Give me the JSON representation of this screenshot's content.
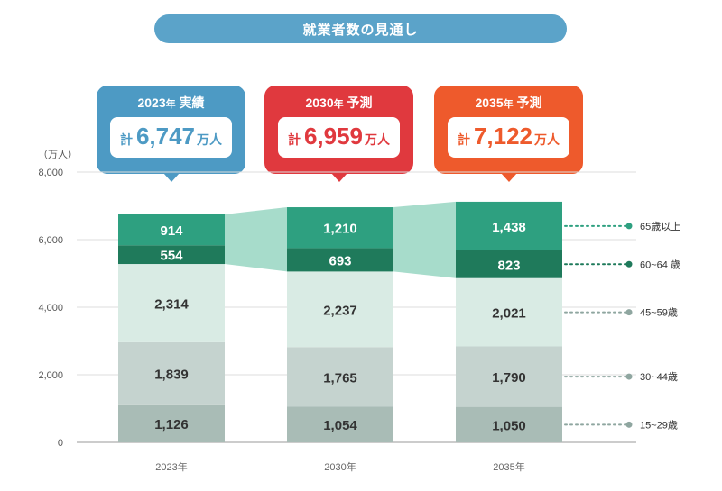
{
  "title": "就業者数の見通し",
  "callouts": [
    {
      "year": "2023",
      "nen": "年",
      "label": "実績",
      "kei": "計",
      "total": "6,747",
      "unit": "万人",
      "color": "#4d9ac4"
    },
    {
      "year": "2030",
      "nen": "年",
      "label": "予測",
      "kei": "計",
      "total": "6,959",
      "unit": "万人",
      "color": "#e0393e"
    },
    {
      "year": "2035",
      "nen": "年",
      "label": "予測",
      "kei": "計",
      "total": "7,122",
      "unit": "万人",
      "color": "#ee5a2c"
    }
  ],
  "chart_data": {
    "type": "bar",
    "stacked": true,
    "yunit": "（万人）",
    "ylim": [
      0,
      8000
    ],
    "yticks": [
      "0",
      "2,000",
      "4,000",
      "6,000",
      "8,000"
    ],
    "categories": [
      "2023年",
      "2030年",
      "2035年"
    ],
    "series": [
      {
        "name": "15~29歳",
        "values": [
          1126,
          1054,
          1050
        ],
        "labels": [
          "1,126",
          "1,054",
          "1,050"
        ],
        "color": "#a9bcb6",
        "text": "#333"
      },
      {
        "name": "30~44歳",
        "values": [
          1839,
          1765,
          1790
        ],
        "labels": [
          "1,839",
          "1,765",
          "1,790"
        ],
        "color": "#c5d3cf",
        "text": "#333"
      },
      {
        "name": "45~59歳",
        "values": [
          2314,
          2237,
          2021
        ],
        "labels": [
          "2,314",
          "2,237",
          "2,021"
        ],
        "color": "#d9ebe4",
        "text": "#333"
      },
      {
        "name": "60~64 歳",
        "values": [
          554,
          693,
          823
        ],
        "labels": [
          "554",
          "693",
          "823"
        ],
        "color": "#1f7a5b",
        "text": "#fff"
      },
      {
        "name": "65歳以上",
        "values": [
          914,
          1210,
          1438
        ],
        "labels": [
          "914",
          "1,210",
          "1,438"
        ],
        "color": "#2ea080",
        "text": "#fff"
      }
    ],
    "connector_color": "#a7dccb"
  }
}
